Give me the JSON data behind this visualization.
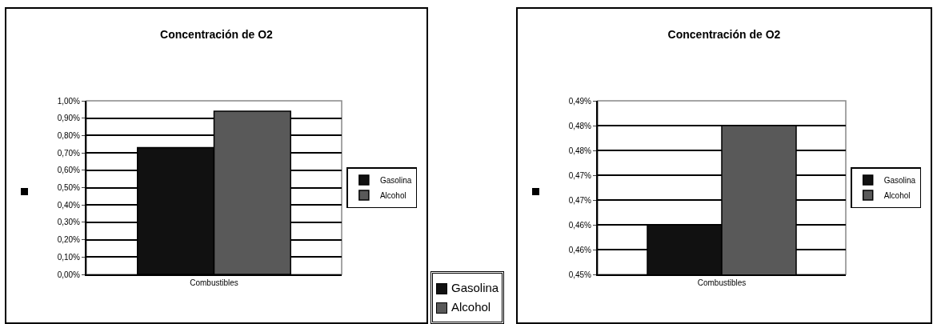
{
  "chart_data": [
    {
      "type": "bar",
      "title": "Concentración de O2",
      "categories": [
        "Combustibles"
      ],
      "series": [
        {
          "name": "Gasolina",
          "color": "#111111",
          "values": [
            0.73
          ]
        },
        {
          "name": "Alcohol",
          "color": "#595959",
          "values": [
            0.94
          ]
        }
      ],
      "ylim": [
        0,
        1
      ],
      "yticks": [
        {
          "value": 0,
          "label": "0,00%"
        },
        {
          "value": 0.1,
          "label": "0,10%"
        },
        {
          "value": 0.2,
          "label": "0,20%"
        },
        {
          "value": 0.3,
          "label": "0,30%"
        },
        {
          "value": 0.4,
          "label": "0,40%"
        },
        {
          "value": 0.5,
          "label": "0,50%"
        },
        {
          "value": 0.6,
          "label": "0,60%"
        },
        {
          "value": 0.7,
          "label": "0,70%"
        },
        {
          "value": 0.8,
          "label": "0,80%"
        },
        {
          "value": 0.9,
          "label": "0,90%"
        },
        {
          "value": 1,
          "label": "1,00%"
        }
      ],
      "grid": "y",
      "legend": "right"
    },
    {
      "type": "other",
      "series": [
        {
          "name": "Gasolina",
          "color": "#111111"
        },
        {
          "name": "Alcohol",
          "color": "#595959"
        }
      ],
      "legend": "bottom"
    },
    {
      "type": "bar",
      "title": "Concentración de O2",
      "categories": [
        "Combustibles"
      ],
      "series": [
        {
          "name": "Gasolina",
          "color": "#111111",
          "values": [
            0.46
          ]
        },
        {
          "name": "Alcohol",
          "color": "#595959",
          "values": [
            0.48
          ]
        }
      ],
      "ylim": [
        0.45,
        0.485
      ],
      "yticks": [
        {
          "value": 0.45,
          "label": "0,45%"
        },
        {
          "value": 0.455,
          "label": "0,46%"
        },
        {
          "value": 0.46,
          "label": "0,46%"
        },
        {
          "value": 0.465,
          "label": "0,47%"
        },
        {
          "value": 0.47,
          "label": "0,47%"
        },
        {
          "value": 0.475,
          "label": "0,48%"
        },
        {
          "value": 0.48,
          "label": "0,48%"
        },
        {
          "value": 0.485,
          "label": "0,49%"
        }
      ],
      "grid": "y",
      "legend": "right"
    }
  ]
}
